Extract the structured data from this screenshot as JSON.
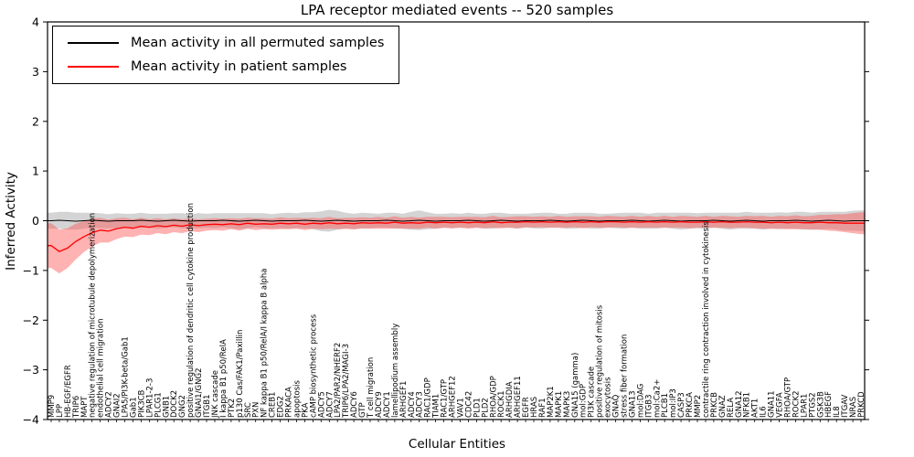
{
  "chart_data": {
    "type": "line",
    "title": "LPA receptor mediated events -- 520 samples",
    "xlabel": "Cellular Entities",
    "ylabel": "Inferred Activity",
    "ylim": [
      -4,
      4
    ],
    "y_ticks": [
      4,
      3,
      2,
      1,
      0,
      -1,
      -2,
      -3,
      -4
    ],
    "grid": false,
    "legend_position": "upper left",
    "colors": {
      "permuted": "#000000",
      "patient": "#ff0000",
      "permuted_band": "#aaaaaa",
      "patient_band": "#ff5555"
    },
    "legend": [
      {
        "label": "Mean activity in all permuted samples",
        "color": "#000000"
      },
      {
        "label": "Mean activity in patient samples",
        "color": "#ff0000"
      }
    ],
    "categories": [
      "MMP9",
      "LPP",
      "HB-EGF/EGFR",
      "TRIP6",
      "MAPT",
      "negative regulation of microtubule depolymerization",
      "endothelial cell migration",
      "ADCY2",
      "GNAI2",
      "LPA5/PI3K-beta/Gab1",
      "Gab1",
      "PIK3CB",
      "LPAR1-2-3",
      "PLCG1",
      "GNB1",
      "DOCK2",
      "GNG2",
      "positive regulation of dendritic cell cytokine production",
      "GNAI1/GNG2",
      "ITGB1",
      "JNK cascade",
      "I kappa B1 p50/RelA",
      "PTK2",
      "p130 Cas/FAK1/Paxillin",
      "SRC",
      "PXN",
      "NF kappa B1 p50/RelA/I kappa B alpha",
      "CREB1",
      "EDG2",
      "PRKACA",
      "apoptosis",
      "PKA",
      "cAMP biosynthetic process",
      "ADCY5",
      "ADCY7",
      "LPA2/PAR2/NHERF2",
      "TRIP6/LPA2/MAGI-3",
      "ADCY6",
      "GTP",
      "T cell migration",
      "ADCY9",
      "ADCY1",
      "lamellipodium assembly",
      "ARHGEF1",
      "ADCY4",
      "ADCY3",
      "RAC1/GDP",
      "TIAM1",
      "RAC1/GTP",
      "ARHGEF12",
      "VAV1",
      "CDC42",
      "PLD1",
      "PLD2",
      "RHOA/GDP",
      "ROCK1",
      "ARHGDIA",
      "ARHGEF11",
      "EGFR",
      "HRAS",
      "RAF1",
      "MAP2K1",
      "MAPK1",
      "MAPK3",
      "GNA15 (gamma)",
      "mol:GDP",
      "PI3K cascade",
      "positive regulation of mitosis",
      "exocytosis",
      "GNAQ",
      "stress fiber formation",
      "GNA13",
      "mol:DAG",
      "ITGB3",
      "mol:Ca2+",
      "PLCB1",
      "mol:IP3",
      "CASP3",
      "PRKCA",
      "MMP2",
      "contractile ring contraction involved in cytokinesis",
      "PRKCB",
      "GNAZ",
      "RELA",
      "GNA12",
      "NFKB1",
      "AKT1",
      "IL6",
      "GNA11",
      "VEGFA",
      "RHOA/GTP",
      "ROCK2",
      "LPAR1",
      "PTGS2",
      "GSK3B",
      "HBEGF",
      "IL8",
      "ITGAV",
      "NRAS",
      "PRKCD"
    ],
    "series": [
      {
        "name": "Mean activity in all permuted samples",
        "values": [
          0,
          0.01,
          0,
          -0.01,
          0,
          0.01,
          0,
          -0.01,
          0,
          0,
          0,
          0.01,
          0,
          -0.01,
          0,
          0.01,
          0,
          -0.01,
          0,
          0,
          0,
          0.01,
          0,
          -0.01,
          0,
          0.01,
          0,
          -0.01,
          0,
          0,
          0,
          0.01,
          0,
          -0.01,
          0,
          0.01,
          0,
          -0.01,
          0,
          0,
          0,
          0.01,
          0,
          -0.01,
          0,
          0.01,
          0,
          -0.01,
          0,
          0,
          0,
          0.01,
          0,
          -0.01,
          0,
          0.01,
          0,
          -0.01,
          0,
          0,
          0,
          0.01,
          0,
          -0.01,
          0,
          0.01,
          0,
          -0.01,
          0,
          0,
          0,
          0.01,
          0,
          -0.01,
          0,
          0.01,
          0,
          -0.01,
          0,
          0,
          0,
          0.01,
          0,
          -0.01,
          0,
          0.01,
          0,
          -0.01,
          0,
          0,
          0,
          0.01,
          0,
          -0.01,
          0,
          0.01,
          0,
          -0.01,
          0,
          0
        ],
        "band_halfwidth": [
          0.16,
          0.17,
          0.18,
          0.17,
          0.16,
          0.15,
          0.15,
          0.14,
          0.15,
          0.14,
          0.14,
          0.15,
          0.14,
          0.15,
          0.14,
          0.14,
          0.15,
          0.14,
          0.15,
          0.14,
          0.15,
          0.14,
          0.15,
          0.16,
          0.15,
          0.14,
          0.15,
          0.14,
          0.15,
          0.16,
          0.15,
          0.16,
          0.17,
          0.2,
          0.22,
          0.19,
          0.16,
          0.15,
          0.16,
          0.15,
          0.14,
          0.15,
          0.16,
          0.15,
          0.18,
          0.2,
          0.17,
          0.15,
          0.14,
          0.15,
          0.14,
          0.15,
          0.14,
          0.15,
          0.16,
          0.15,
          0.14,
          0.15,
          0.14,
          0.15,
          0.16,
          0.15,
          0.14,
          0.15,
          0.16,
          0.15,
          0.16,
          0.15,
          0.14,
          0.15,
          0.16,
          0.15,
          0.16,
          0.15,
          0.16,
          0.15,
          0.16,
          0.17,
          0.16,
          0.15,
          0.16,
          0.15,
          0.16,
          0.17,
          0.16,
          0.17,
          0.16,
          0.17,
          0.16,
          0.17,
          0.16,
          0.17,
          0.18,
          0.17,
          0.18,
          0.17,
          0.18,
          0.19,
          0.2,
          0.21
        ]
      },
      {
        "name": "Mean activity in patient samples",
        "values": [
          -0.5,
          -0.62,
          -0.55,
          -0.42,
          -0.32,
          -0.24,
          -0.19,
          -0.21,
          -0.16,
          -0.13,
          -0.15,
          -0.11,
          -0.13,
          -0.1,
          -0.12,
          -0.09,
          -0.11,
          -0.08,
          -0.1,
          -0.08,
          -0.07,
          -0.08,
          -0.06,
          -0.08,
          -0.05,
          -0.07,
          -0.06,
          -0.07,
          -0.05,
          -0.06,
          -0.05,
          -0.07,
          -0.05,
          -0.06,
          -0.04,
          -0.06,
          -0.05,
          -0.06,
          -0.04,
          -0.05,
          -0.04,
          -0.05,
          -0.03,
          -0.05,
          -0.04,
          -0.05,
          -0.03,
          -0.04,
          -0.03,
          -0.04,
          -0.03,
          -0.04,
          -0.03,
          -0.04,
          -0.02,
          -0.04,
          -0.03,
          -0.03,
          -0.02,
          -0.03,
          -0.02,
          -0.03,
          -0.02,
          -0.03,
          -0.02,
          -0.03,
          -0.02,
          -0.03,
          -0.02,
          -0.02,
          -0.03,
          -0.02,
          -0.03,
          -0.02,
          -0.03,
          -0.02,
          -0.03,
          -0.02,
          -0.03,
          -0.03,
          -0.02,
          -0.03,
          -0.02,
          -0.03,
          -0.03,
          -0.02,
          -0.03,
          -0.03,
          -0.04,
          -0.03,
          -0.04,
          -0.03,
          -0.04,
          -0.04,
          -0.03,
          -0.04,
          -0.04,
          -0.05,
          -0.05,
          -0.05
        ],
        "band_halfwidth": [
          0.45,
          0.44,
          0.4,
          0.36,
          0.31,
          0.28,
          0.25,
          0.23,
          0.21,
          0.19,
          0.18,
          0.17,
          0.16,
          0.15,
          0.15,
          0.14,
          0.14,
          0.13,
          0.13,
          0.12,
          0.12,
          0.12,
          0.11,
          0.12,
          0.11,
          0.12,
          0.11,
          0.11,
          0.12,
          0.11,
          0.11,
          0.12,
          0.11,
          0.11,
          0.12,
          0.11,
          0.11,
          0.12,
          0.11,
          0.11,
          0.12,
          0.11,
          0.12,
          0.11,
          0.12,
          0.11,
          0.11,
          0.12,
          0.11,
          0.11,
          0.11,
          0.12,
          0.11,
          0.11,
          0.12,
          0.11,
          0.11,
          0.12,
          0.11,
          0.11,
          0.11,
          0.11,
          0.12,
          0.11,
          0.11,
          0.12,
          0.11,
          0.11,
          0.12,
          0.11,
          0.11,
          0.12,
          0.11,
          0.12,
          0.11,
          0.12,
          0.11,
          0.12,
          0.12,
          0.11,
          0.12,
          0.11,
          0.12,
          0.12,
          0.11,
          0.12,
          0.12,
          0.13,
          0.12,
          0.13,
          0.13,
          0.14,
          0.13,
          0.14,
          0.15,
          0.16,
          0.17,
          0.18,
          0.2,
          0.22
        ]
      }
    ]
  }
}
